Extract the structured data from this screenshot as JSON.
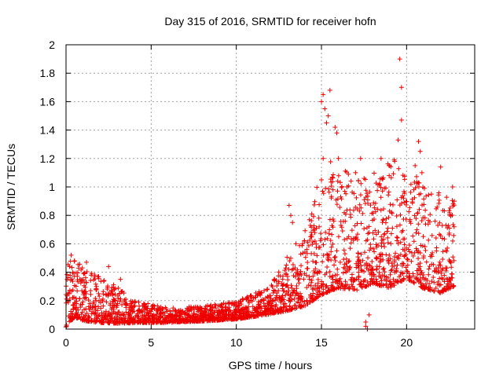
{
  "chart_data": {
    "type": "scatter",
    "title": "Day 315 of 2016, SRMTID for receiver hofn",
    "xlabel": "GPS time / hours",
    "ylabel": "SRMTID / TECUs",
    "xlim": [
      0,
      24
    ],
    "ylim": [
      0,
      2
    ],
    "x_ticks": [
      0,
      5,
      10,
      15,
      20
    ],
    "y_ticks": [
      0,
      0.2,
      0.4,
      0.6,
      0.8,
      1,
      1.2,
      1.4,
      1.6,
      1.8,
      2
    ],
    "grid": true,
    "marker": "+",
    "series_color": "#ee0000",
    "series": [
      {
        "name": "hofn",
        "envelope": [
          {
            "x": 0.0,
            "base": 0.12,
            "spread": 0.35
          },
          {
            "x": 0.5,
            "base": 0.18,
            "spread": 0.32
          },
          {
            "x": 1.0,
            "base": 0.15,
            "spread": 0.3
          },
          {
            "x": 2.0,
            "base": 0.12,
            "spread": 0.25
          },
          {
            "x": 3.0,
            "base": 0.1,
            "spread": 0.2
          },
          {
            "x": 4.0,
            "base": 0.08,
            "spread": 0.12
          },
          {
            "x": 6.0,
            "base": 0.07,
            "spread": 0.08
          },
          {
            "x": 8.0,
            "base": 0.08,
            "spread": 0.08
          },
          {
            "x": 10.0,
            "base": 0.1,
            "spread": 0.1
          },
          {
            "x": 12.0,
            "base": 0.15,
            "spread": 0.15
          },
          {
            "x": 13.0,
            "base": 0.22,
            "spread": 0.3
          },
          {
            "x": 14.0,
            "base": 0.28,
            "spread": 0.4
          },
          {
            "x": 15.0,
            "base": 0.45,
            "spread": 0.7
          },
          {
            "x": 16.0,
            "base": 0.5,
            "spread": 0.7
          },
          {
            "x": 17.0,
            "base": 0.45,
            "spread": 0.6
          },
          {
            "x": 18.0,
            "base": 0.5,
            "spread": 0.6
          },
          {
            "x": 19.0,
            "base": 0.5,
            "spread": 0.7
          },
          {
            "x": 20.0,
            "base": 0.55,
            "spread": 0.65
          },
          {
            "x": 21.0,
            "base": 0.45,
            "spread": 0.55
          },
          {
            "x": 22.0,
            "base": 0.42,
            "spread": 0.55
          },
          {
            "x": 22.8,
            "base": 0.45,
            "spread": 0.5
          }
        ],
        "point_count": 2400,
        "notable_points": [
          {
            "x": 15.0,
            "y": 1.6
          },
          {
            "x": 15.1,
            "y": 1.65
          },
          {
            "x": 15.2,
            "y": 1.55
          },
          {
            "x": 15.5,
            "y": 1.68
          },
          {
            "x": 15.4,
            "y": 1.5
          },
          {
            "x": 15.3,
            "y": 1.45
          },
          {
            "x": 15.8,
            "y": 1.42
          },
          {
            "x": 15.9,
            "y": 1.38
          },
          {
            "x": 16.0,
            "y": 1.2
          },
          {
            "x": 15.1,
            "y": 1.2
          },
          {
            "x": 15.0,
            "y": 1.05
          },
          {
            "x": 16.5,
            "y": 1.0
          },
          {
            "x": 17.0,
            "y": 1.1
          },
          {
            "x": 17.3,
            "y": 1.2
          },
          {
            "x": 18.5,
            "y": 1.2
          },
          {
            "x": 19.0,
            "y": 1.15
          },
          {
            "x": 19.6,
            "y": 1.9
          },
          {
            "x": 19.7,
            "y": 1.7
          },
          {
            "x": 19.7,
            "y": 1.47
          },
          {
            "x": 19.5,
            "y": 1.33
          },
          {
            "x": 20.7,
            "y": 1.32
          },
          {
            "x": 20.8,
            "y": 1.25
          },
          {
            "x": 20.9,
            "y": 1.1
          },
          {
            "x": 20.5,
            "y": 1.15
          },
          {
            "x": 22.0,
            "y": 1.14
          },
          {
            "x": 22.7,
            "y": 1.0
          },
          {
            "x": 22.8,
            "y": 0.9
          },
          {
            "x": 13.1,
            "y": 0.87
          },
          {
            "x": 13.2,
            "y": 0.8
          },
          {
            "x": 13.3,
            "y": 0.75
          },
          {
            "x": 13.5,
            "y": 0.6
          },
          {
            "x": 14.0,
            "y": 0.62
          },
          {
            "x": 14.4,
            "y": 0.68
          },
          {
            "x": 17.6,
            "y": 0.02
          },
          {
            "x": 17.7,
            "y": 0.0
          },
          {
            "x": 17.6,
            "y": 0.05
          },
          {
            "x": 17.8,
            "y": 0.1
          },
          {
            "x": 0.3,
            "y": 0.52
          },
          {
            "x": 0.5,
            "y": 0.48
          },
          {
            "x": 1.2,
            "y": 0.47
          },
          {
            "x": 2.5,
            "y": 0.44
          },
          {
            "x": 3.2,
            "y": 0.35
          }
        ]
      }
    ]
  }
}
